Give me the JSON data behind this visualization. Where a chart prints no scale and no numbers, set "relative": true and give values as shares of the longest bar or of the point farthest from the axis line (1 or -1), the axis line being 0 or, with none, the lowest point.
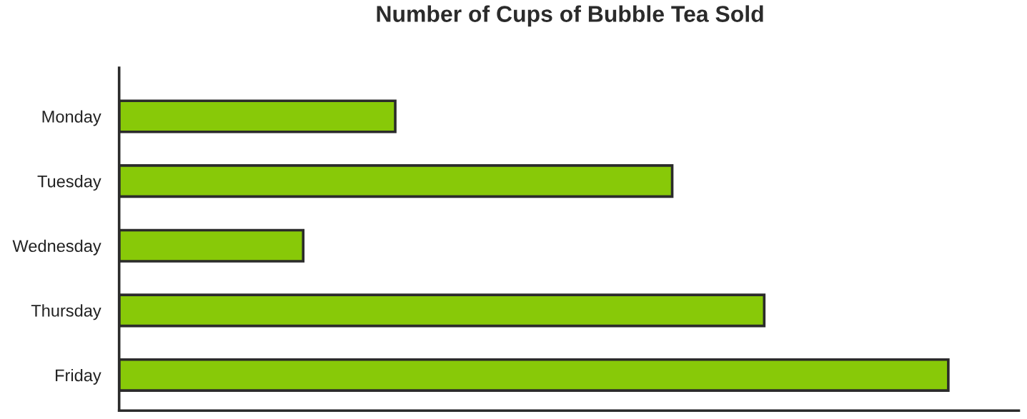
{
  "chart_data": {
    "type": "bar",
    "orientation": "horizontal",
    "relative": true,
    "title": "Number of Cups of Bubble Tea Sold",
    "categories": [
      "Monday",
      "Tuesday",
      "Wednesday",
      "Thursday",
      "Friday"
    ],
    "values": [
      0.333,
      0.667,
      0.222,
      0.778,
      1
    ],
    "color": "#88c908",
    "grid": false,
    "legend": false,
    "tick_labels": "y"
  }
}
